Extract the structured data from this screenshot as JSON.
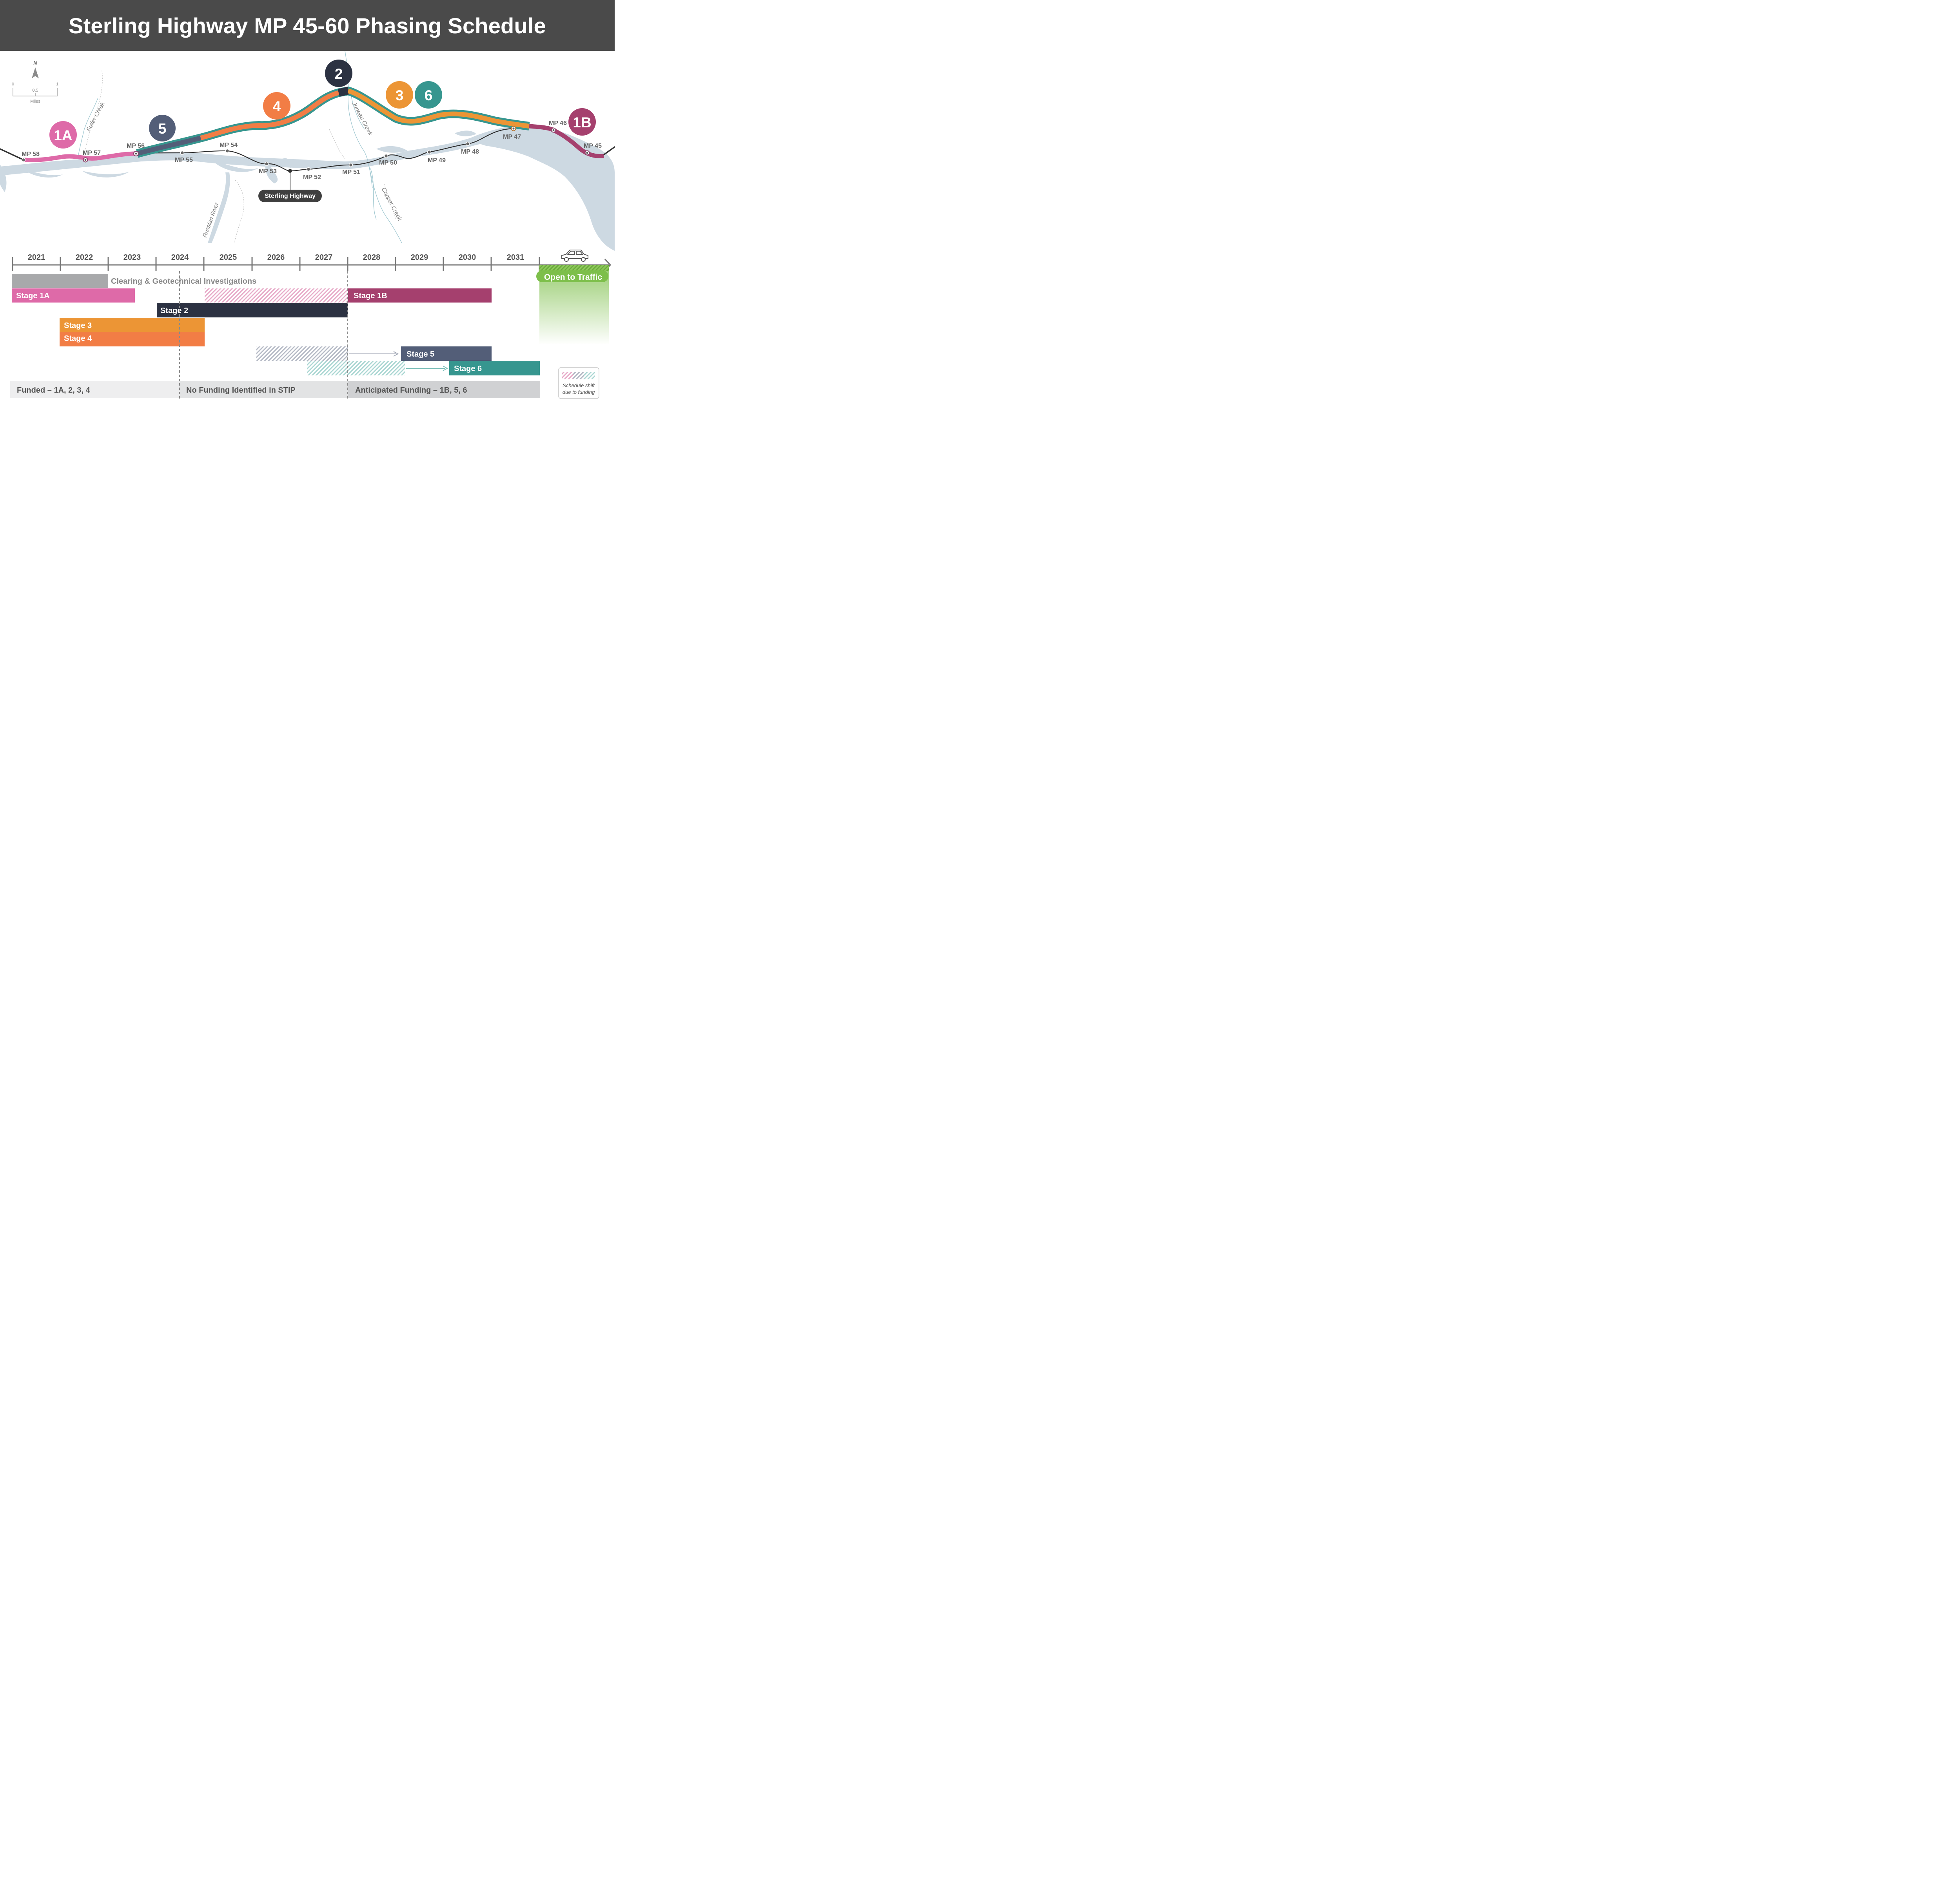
{
  "title": "Sterling Highway MP 45-60 Phasing Schedule",
  "scale": {
    "north_symbol": "N",
    "ticks": [
      "0",
      "0.5",
      "1"
    ],
    "unit_label": "Miles"
  },
  "map": {
    "creeks": [
      "Fuller Creek",
      "Juneau Creek",
      "Copper Creek",
      "Russian River"
    ],
    "mileposts": [
      "MP 58",
      "MP 57",
      "MP 56",
      "MP 55",
      "MP 54",
      "MP 53",
      "MP 52",
      "MP 51",
      "MP 50",
      "MP 49",
      "MP 48",
      "MP 47",
      "MP 46",
      "MP 45"
    ],
    "highway_callout": "Sterling Highway",
    "stage_markers": [
      "1A",
      "5",
      "4",
      "2",
      "3",
      "6",
      "1B"
    ]
  },
  "timeline": {
    "years": [
      "2021",
      "2022",
      "2023",
      "2024",
      "2025",
      "2026",
      "2027",
      "2028",
      "2029",
      "2030",
      "2031"
    ],
    "car_icon": "car-icon",
    "open_to_traffic": "Open to Traffic"
  },
  "bars": {
    "clearing": "Clearing & Geotechnical Investigations",
    "stage_1a": "Stage 1A",
    "stage_1b": "Stage 1B",
    "stage_2": "Stage 2",
    "stage_3": "Stage 3",
    "stage_4": "Stage 4",
    "stage_5": "Stage 5",
    "stage_6": "Stage 6"
  },
  "funding": {
    "funded": "Funded – 1A, 2, 3, 4",
    "none": "No Funding Identified in STIP",
    "anticipated": "Anticipated Funding – 1B, 5, 6"
  },
  "legend": {
    "line1": "Schedule shift",
    "line2": "due to funding"
  },
  "colors": {
    "stage_1a": "#de6aa8",
    "stage_1b": "#a5406e",
    "stage_2": "#2c3242",
    "stage_3": "#ec9535",
    "stage_4": "#f27d45",
    "stage_5": "#535e78",
    "stage_6": "#36968f",
    "clearing": "#a8a9ab",
    "water": "#cdd9e2",
    "title_bar": "#4a4a4a",
    "open_to_traffic": "#7dbf4a"
  }
}
